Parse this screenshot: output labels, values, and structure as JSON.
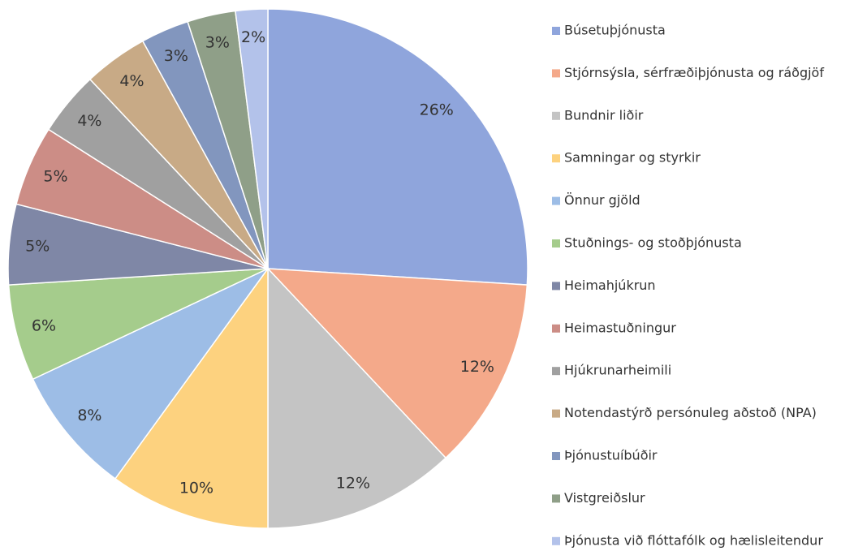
{
  "chart_data": {
    "type": "pie",
    "categories": [
      "Búsetuþjónusta",
      "Stjórnsýsla, sérfræðiþjónusta og ráðgjöf",
      "Bundnir liðir",
      "Samningar og styrkir",
      "Önnur gjöld",
      "Stuðnings- og stoðþjónusta",
      "Heimahjúkrun",
      "Heimastuðningur",
      "Hjúkrunarheimili",
      "Notendastýrð persónuleg aðstoð (NPA)",
      "Þjónustuíbúðir",
      "Vistgreiðslur",
      "Þjónusta við flóttafólk og hælisleitendur"
    ],
    "values": [
      26,
      12,
      12,
      10,
      8,
      6,
      5,
      5,
      4,
      4,
      3,
      3,
      2
    ],
    "value_labels": [
      "26%",
      "12%",
      "12%",
      "10%",
      "8%",
      "6%",
      "5%",
      "5%",
      "4%",
      "4%",
      "3%",
      "3%",
      "2%"
    ],
    "colors": [
      "#8fa5dc",
      "#f4a98a",
      "#c4c4c4",
      "#fdd27f",
      "#9dbde6",
      "#a5cc8c",
      "#7f87a6",
      "#cc8d86",
      "#a0a0a0",
      "#c8aa86",
      "#8296be",
      "#8f9f88",
      "#b3c2ea"
    ],
    "legend": "right"
  }
}
